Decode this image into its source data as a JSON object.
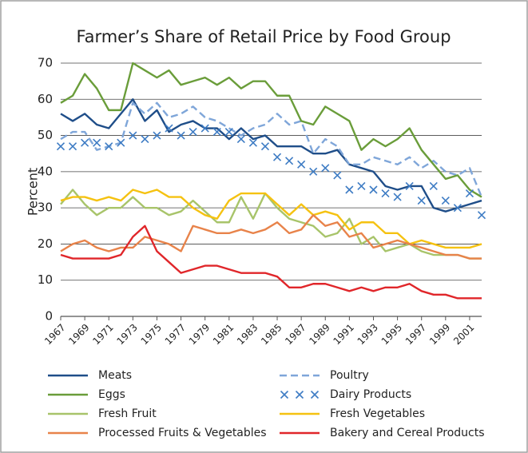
{
  "chart_data": {
    "type": "line",
    "title": "Farmer’s Share of Retail Price by Food Group",
    "ylabel": "Percent",
    "x": [
      1967,
      1968,
      1969,
      1970,
      1971,
      1972,
      1973,
      1974,
      1975,
      1976,
      1977,
      1978,
      1979,
      1980,
      1981,
      1982,
      1983,
      1984,
      1985,
      1986,
      1987,
      1988,
      1989,
      1990,
      1991,
      1992,
      1993,
      1994,
      1995,
      1996,
      1997,
      1998,
      1999,
      2000,
      2001,
      2002
    ],
    "xlim": [
      1967,
      2002
    ],
    "xticks": [
      1967,
      1969,
      1971,
      1973,
      1975,
      1977,
      1979,
      1981,
      1983,
      1985,
      1987,
      1989,
      1991,
      1993,
      1995,
      1997,
      1999,
      2001
    ],
    "ylim": [
      0,
      70
    ],
    "yticks": [
      0,
      10,
      20,
      30,
      40,
      50,
      60,
      70
    ],
    "grid": true,
    "series": [
      {
        "name": "Meats",
        "color": "#1f4e89",
        "values": [
          56,
          54,
          56,
          53,
          52,
          56,
          60,
          54,
          57,
          51,
          53,
          54,
          52,
          52,
          49,
          52,
          49,
          50,
          47,
          47,
          47,
          45,
          45,
          46,
          42,
          41,
          40,
          36,
          35,
          36,
          36,
          30,
          29,
          30,
          31,
          32
        ]
      },
      {
        "name": "Poultry",
        "color": "#7fa6d9",
        "dash": true,
        "values": [
          49,
          51,
          51,
          46,
          47,
          48,
          59,
          56,
          59,
          55,
          56,
          58,
          55,
          54,
          52,
          50,
          52,
          53,
          56,
          53,
          54,
          45,
          49,
          47,
          42,
          42,
          44,
          43,
          42,
          44,
          41,
          43,
          40,
          39,
          41,
          33
        ]
      },
      {
        "name": "Eggs",
        "color": "#6a9d3a",
        "values": [
          59,
          61,
          67,
          63,
          57,
          57,
          70,
          68,
          66,
          68,
          64,
          65,
          66,
          64,
          66,
          63,
          65,
          65,
          61,
          61,
          54,
          53,
          58,
          56,
          54,
          46,
          49,
          47,
          49,
          52,
          46,
          42,
          38,
          39,
          35,
          33
        ]
      },
      {
        "name": "Dairy Products",
        "color": "#3e7cc4",
        "marker": "x",
        "values": [
          47,
          47,
          48,
          48,
          47,
          48,
          50,
          49,
          50,
          52,
          50,
          51,
          52,
          51,
          51,
          49,
          48,
          47,
          44,
          43,
          42,
          40,
          41,
          39,
          35,
          36,
          35,
          34,
          33,
          36,
          32,
          36,
          32,
          30,
          34,
          28
        ]
      },
      {
        "name": "Fresh Fruit",
        "color": "#a8c46a",
        "values": [
          31,
          35,
          31,
          28,
          30,
          30,
          33,
          30,
          30,
          28,
          29,
          32,
          29,
          26,
          26,
          33,
          27,
          34,
          30,
          27,
          26,
          25,
          22,
          23,
          27,
          20,
          22,
          18,
          19,
          20,
          18,
          17,
          17,
          17,
          16,
          16
        ]
      },
      {
        "name": "Fresh Vegetables",
        "color": "#f5c211",
        "values": [
          32,
          33,
          33,
          32,
          33,
          32,
          35,
          34,
          35,
          33,
          33,
          30,
          28,
          27,
          32,
          34,
          34,
          34,
          31,
          28,
          31,
          28,
          29,
          28,
          24,
          26,
          26,
          23,
          23,
          20,
          21,
          20,
          19,
          19,
          19,
          20
        ]
      },
      {
        "name": "Processed Fruits & Vegetables",
        "color": "#e8834a",
        "values": [
          18,
          20,
          21,
          19,
          18,
          19,
          19,
          22,
          21,
          20,
          18,
          25,
          24,
          23,
          23,
          24,
          23,
          24,
          26,
          23,
          24,
          28,
          25,
          26,
          22,
          23,
          19,
          20,
          21,
          20,
          19,
          18,
          17,
          17,
          16,
          16
        ]
      },
      {
        "name": "Bakery and Cereal Products",
        "color": "#e0262a",
        "values": [
          17,
          16,
          16,
          16,
          16,
          17,
          22,
          25,
          18,
          15,
          12,
          13,
          14,
          14,
          13,
          12,
          12,
          12,
          11,
          8,
          8,
          9,
          9,
          8,
          7,
          8,
          7,
          8,
          8,
          9,
          7,
          6,
          6,
          5,
          5,
          5
        ]
      }
    ]
  }
}
